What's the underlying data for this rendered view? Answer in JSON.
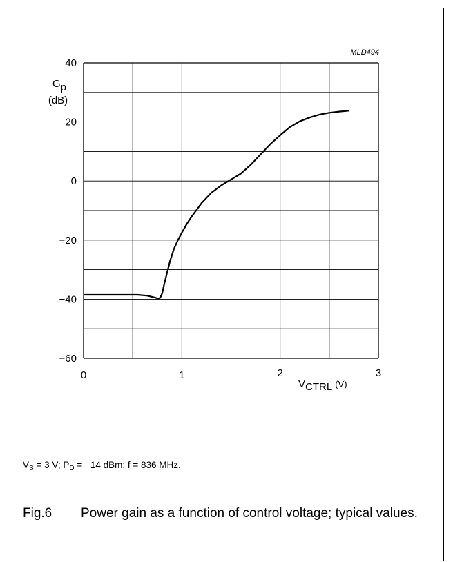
{
  "chart_data": {
    "type": "line",
    "code": "MLD494",
    "ylabel": {
      "main": "G",
      "sub": "p",
      "unit": "(dB)"
    },
    "xlabel": {
      "main": "V",
      "sub": "CTRL",
      "unit": "(V)"
    },
    "xlim": [
      0,
      3
    ],
    "ylim": [
      -60,
      40
    ],
    "x_ticks": [
      0,
      1,
      2,
      3
    ],
    "y_ticks": [
      40,
      20,
      0,
      -20,
      -40,
      -60
    ],
    "y_tick_labels": [
      "40",
      "20",
      "0",
      "−20",
      "−40",
      "−60"
    ],
    "grid": true,
    "series": [
      {
        "x": [
          0,
          0.2,
          0.4,
          0.55,
          0.65,
          0.72,
          0.76,
          0.78,
          0.8,
          0.82,
          0.85,
          0.88,
          0.92,
          0.96,
          1.0,
          1.05,
          1.1,
          1.2,
          1.3,
          1.4,
          1.5,
          1.6,
          1.7,
          1.8,
          1.9,
          2.0,
          2.1,
          2.2,
          2.3,
          2.4,
          2.5,
          2.6,
          2.7
        ],
        "y": [
          -38.5,
          -38.5,
          -38.5,
          -38.5,
          -38.8,
          -39.4,
          -39.8,
          -39.5,
          -38,
          -35,
          -31,
          -27,
          -23,
          -20,
          -17.5,
          -14.5,
          -12,
          -7.5,
          -4,
          -1.5,
          0.5,
          2.5,
          5.5,
          9,
          12.5,
          15.5,
          18.3,
          20.2,
          21.5,
          22.5,
          23.1,
          23.5,
          23.8
        ]
      }
    ]
  },
  "conditions": {
    "vs_main": "V",
    "vs_sub": "S",
    "vs_value": " = 3 V; ",
    "pd_main": "P",
    "pd_sub": "D",
    "pd_value": " = −14 dBm; f = 836 MHz."
  },
  "caption": {
    "fig": "Fig.6",
    "text": "Power gain as a function of control voltage; typical values."
  }
}
